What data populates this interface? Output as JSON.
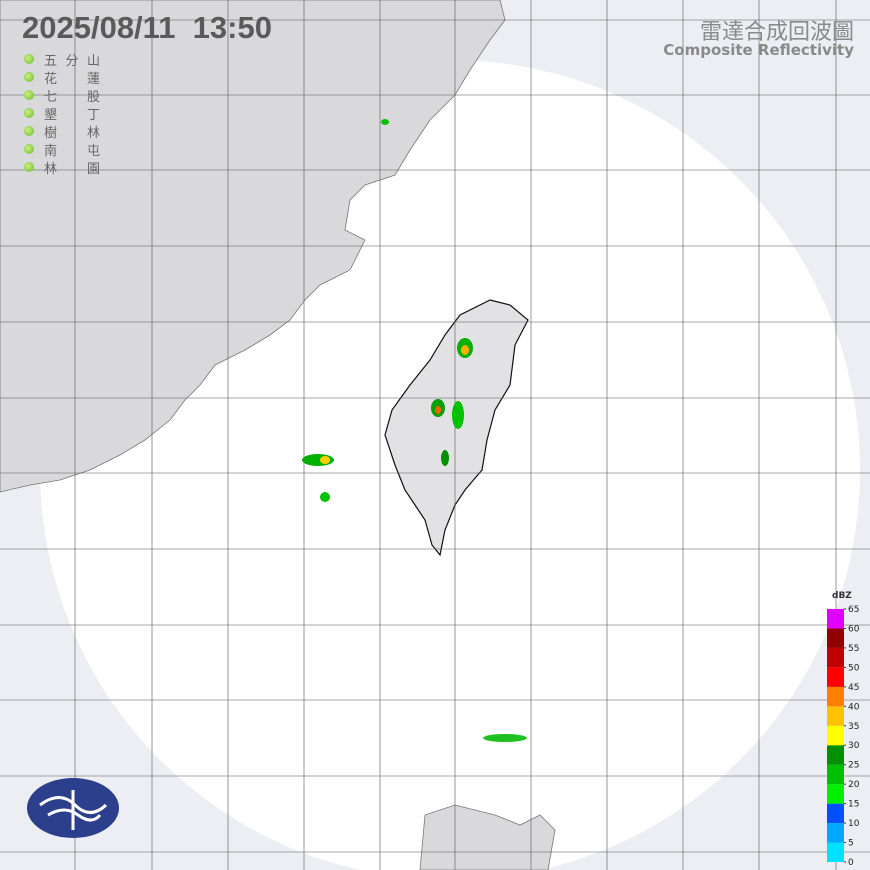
{
  "header": {
    "datetime": "2025/08/11  13:50",
    "title": "雷達合成回波圖",
    "subtitle": "Composite Reflectivity"
  },
  "stations": [
    "五分山",
    "花蓮",
    "七股",
    "墾丁",
    "樹林",
    "南屯",
    "林園"
  ],
  "legend": {
    "unit": "dBZ",
    "ticks": [
      0,
      5,
      10,
      15,
      20,
      25,
      30,
      35,
      40,
      45,
      50,
      55,
      60,
      65
    ],
    "colors": [
      "#00e0ff",
      "#00a8ff",
      "#0050ff",
      "#00f000",
      "#00c000",
      "#009000",
      "#ffff00",
      "#ffc000",
      "#ff8000",
      "#ff0000",
      "#c00000",
      "#900000",
      "#e000ff"
    ]
  }
}
